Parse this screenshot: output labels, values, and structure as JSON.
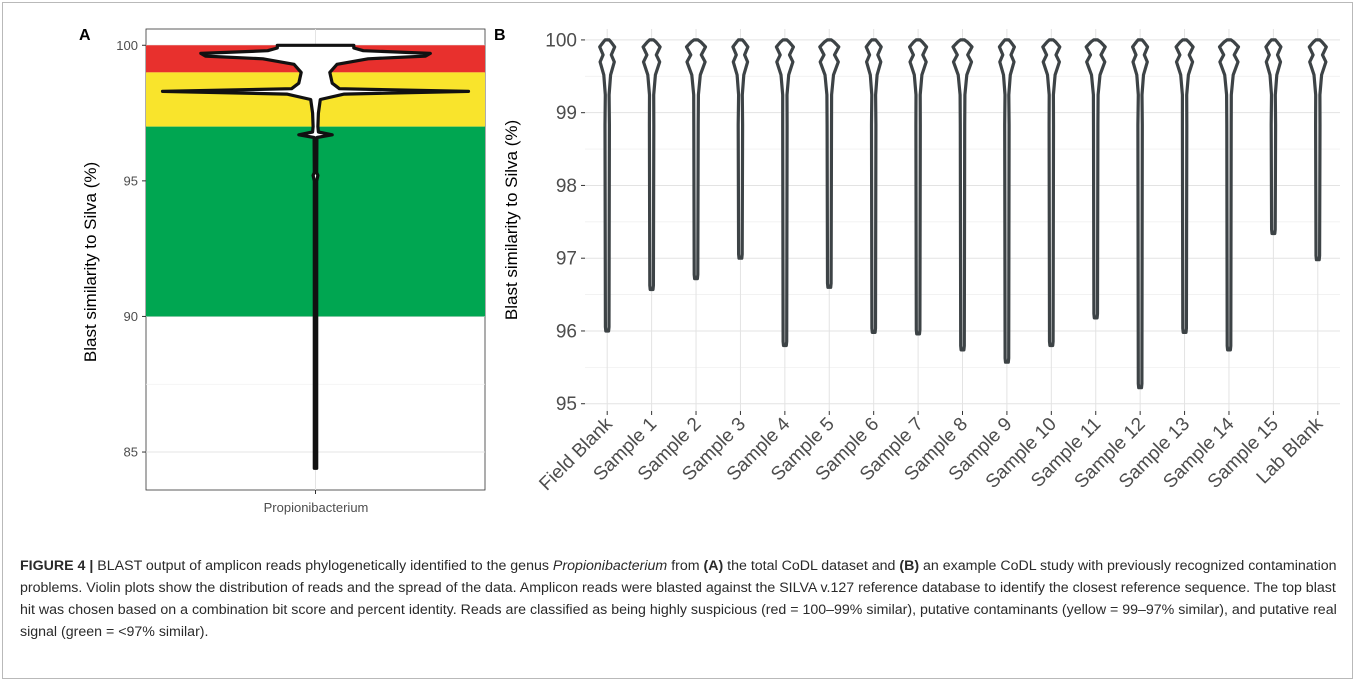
{
  "chart_data": [
    {
      "panel": "A",
      "type": "violin",
      "ylabel": "Blast similarity to Silva (%)",
      "categories": [
        "Propionibacterium"
      ],
      "yticks": [
        85,
        90,
        95,
        100
      ],
      "ylim": [
        83.6,
        100.6
      ],
      "bands": [
        {
          "from": 99,
          "to": 100,
          "color": "#e8302d"
        },
        {
          "from": 97,
          "to": 99,
          "color": "#f9e42c"
        },
        {
          "from": 90,
          "to": 97,
          "color": "#00a651"
        }
      ],
      "violin": {
        "min": 84.4,
        "max": 100,
        "half_width_profile": [
          [
            84.4,
            0.02
          ],
          [
            95,
            0.02
          ],
          [
            95.2,
            0.05
          ],
          [
            95.3,
            0.02
          ],
          [
            96.6,
            0.03
          ],
          [
            96.7,
            0.35
          ],
          [
            96.8,
            0.06
          ],
          [
            97.0,
            0.05
          ],
          [
            97.5,
            0.06
          ],
          [
            98.0,
            0.1
          ],
          [
            98.2,
            0.6
          ],
          [
            98.3,
            3.2
          ],
          [
            98.4,
            0.5
          ],
          [
            98.6,
            0.35
          ],
          [
            99.0,
            0.3
          ],
          [
            99.3,
            0.45
          ],
          [
            99.5,
            1.1
          ],
          [
            99.6,
            2.3
          ],
          [
            99.7,
            2.4
          ],
          [
            99.8,
            1.0
          ],
          [
            99.9,
            0.8
          ],
          [
            100,
            0.8
          ]
        ]
      }
    },
    {
      "panel": "B",
      "type": "violin",
      "ylabel": "Blast similarity to Silva (%)",
      "yticks": [
        95,
        96,
        97,
        98,
        99,
        100
      ],
      "ylim": [
        94.9,
        100.15
      ],
      "categories": [
        "Field Blank",
        "Sample 1",
        "Sample 2",
        "Sample 3",
        "Sample 4",
        "Sample 5",
        "Sample 6",
        "Sample 7",
        "Sample 8",
        "Sample 9",
        "Sample 10",
        "Sample 11",
        "Sample 12",
        "Sample 13",
        "Sample 14",
        "Sample 15",
        "Lab Blank"
      ],
      "min_values": [
        96.0,
        96.57,
        96.72,
        97.0,
        95.8,
        96.6,
        95.98,
        95.96,
        95.74,
        95.57,
        95.8,
        96.18,
        95.22,
        95.98,
        95.74,
        97.34,
        96.98
      ],
      "max_value": 100
    }
  ],
  "caption": {
    "figure_label": "FIGURE 4 |",
    "text_1": " BLAST output of amplicon reads phylogenetically identified to the genus ",
    "genus": "Propionibacterium",
    "text_2": " from ",
    "label_a": "(A)",
    "text_3": " the total CoDL dataset and ",
    "label_b": "(B)",
    "text_4": " an example CoDL study with previously recognized contamination problems. Violin plots show the distribution of reads and the spread of the data. Amplicon reads were blasted against the SILVA v.127 reference database to identify the closest reference sequence. The top blast hit was chosen based on a combination bit score and percent identity. Reads are classified as being highly suspicious (red = 100–99% similar), putative contaminants (yellow = 99–97% similar), and putative real signal (green = <97% similar)."
  }
}
